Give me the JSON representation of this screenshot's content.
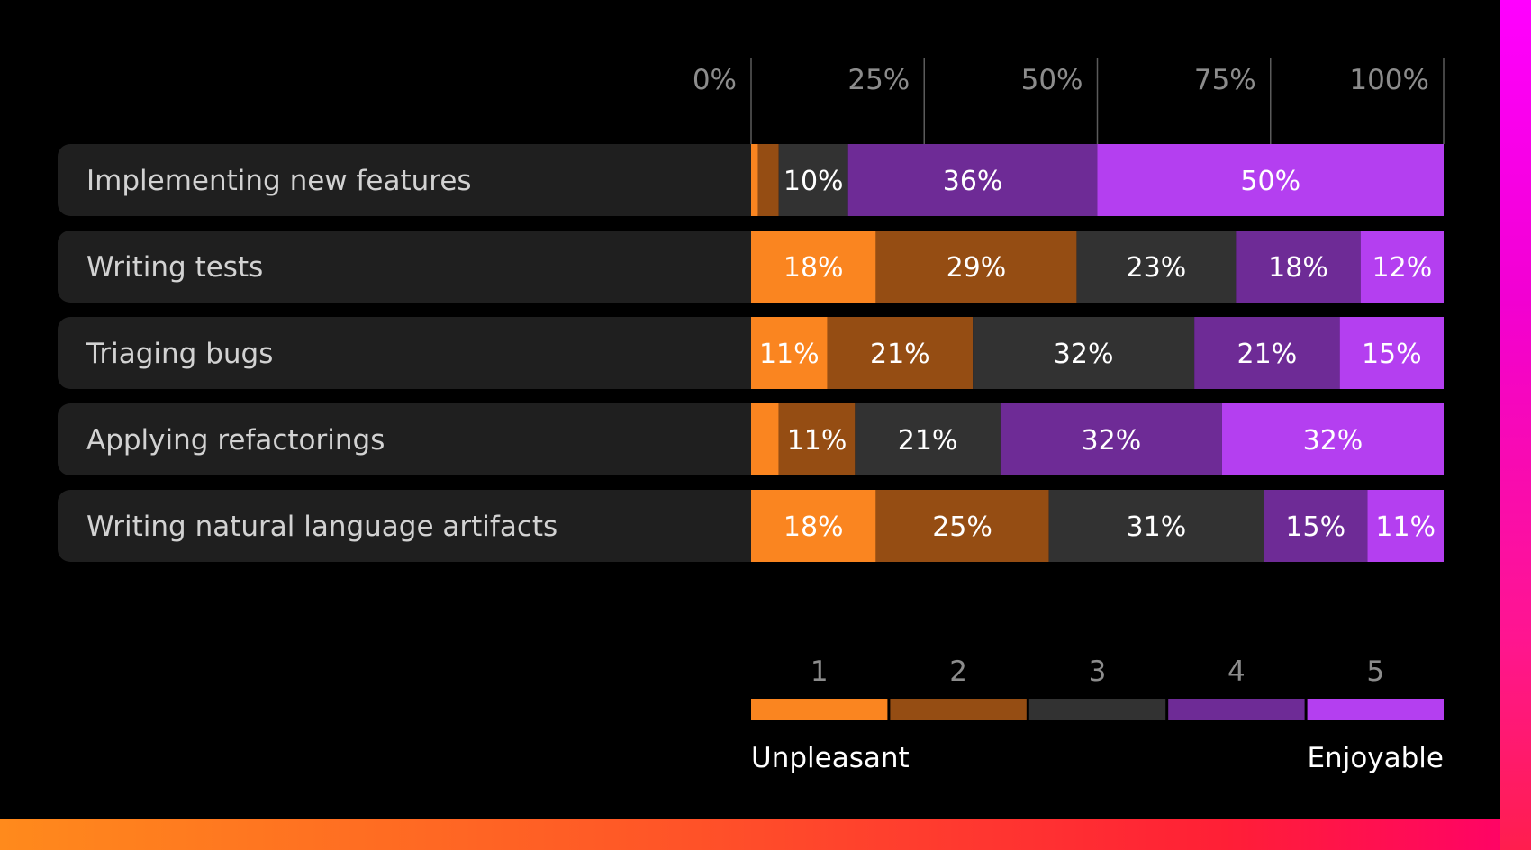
{
  "chart_data": {
    "type": "bar",
    "orientation": "horizontal",
    "stacked": true,
    "xlim": [
      0,
      100
    ],
    "x_ticks": [
      "0%",
      "25%",
      "50%",
      "75%",
      "100%"
    ],
    "grid": true,
    "categories": [
      "Implementing new features",
      "Writing tests",
      "Triaging bugs",
      "Applying refactorings",
      "Writing natural language artifacts"
    ],
    "series": [
      {
        "key": "1",
        "color": "#fa8520",
        "values": [
          1,
          18,
          11,
          4,
          18
        ],
        "labels": [
          "",
          "18%",
          "11%",
          "",
          "18%"
        ]
      },
      {
        "key": "2",
        "color": "#954d13",
        "values": [
          3,
          29,
          21,
          11,
          25
        ],
        "labels": [
          "",
          "29%",
          "21%",
          "11%",
          "25%"
        ]
      },
      {
        "key": "3",
        "color": "#323232",
        "values": [
          10,
          23,
          32,
          21,
          31
        ],
        "labels": [
          "10%",
          "23%",
          "32%",
          "21%",
          "31%"
        ]
      },
      {
        "key": "4",
        "color": "#6e2b96",
        "values": [
          36,
          18,
          21,
          32,
          15
        ],
        "labels": [
          "36%",
          "18%",
          "21%",
          "32%",
          "15%"
        ]
      },
      {
        "key": "5",
        "color": "#b43ff0",
        "values": [
          50,
          12,
          15,
          32,
          11
        ],
        "labels": [
          "50%",
          "12%",
          "15%",
          "32%",
          "11%"
        ]
      }
    ],
    "legend": {
      "placement": "bottom-right",
      "scale_labels": [
        "1",
        "2",
        "3",
        "4",
        "5"
      ],
      "low_label": "Unpleasant",
      "high_label": "Enjoyable"
    }
  }
}
